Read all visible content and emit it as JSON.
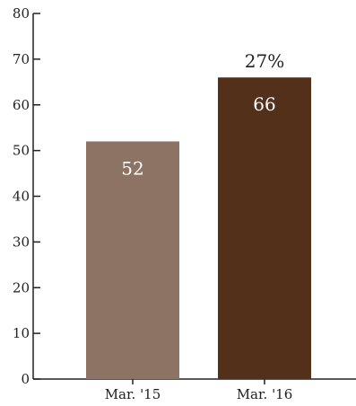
{
  "chart_data": {
    "type": "bar",
    "categories": [
      "Mar. '15",
      "Mar. '16"
    ],
    "values": [
      52,
      66
    ],
    "value_labels": [
      "52",
      "66"
    ],
    "bar_colors": [
      "#8c7363",
      "#533019"
    ],
    "data_label_color": "#ffffff",
    "annotation": {
      "text": "27%",
      "category_index": 1
    },
    "ylim": [
      0,
      80
    ],
    "yticks": [
      0,
      10,
      20,
      30,
      40,
      50,
      60,
      70,
      80
    ],
    "grid": false,
    "title": "",
    "xlabel": "",
    "ylabel": ""
  }
}
